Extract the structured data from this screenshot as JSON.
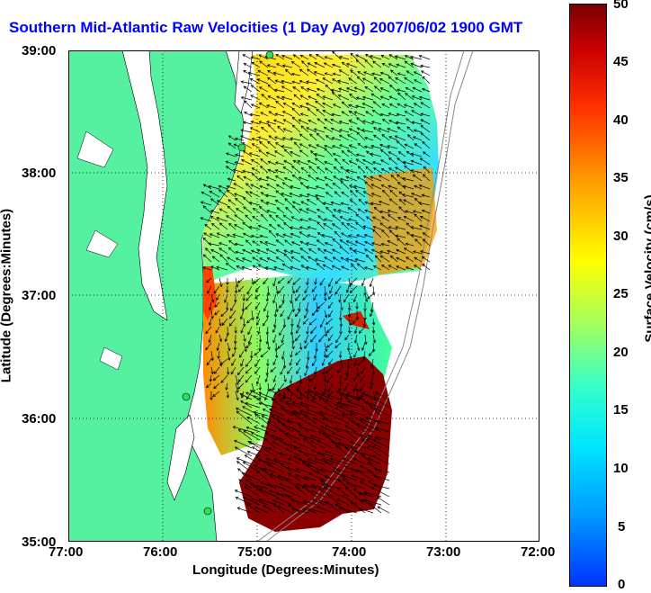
{
  "title": "Southern Mid-Atlantic Raw Velocities (1 Day Avg) 2007/06/02 1900 GMT",
  "axes": {
    "xlabel": "Longitude (Degrees:Minutes)",
    "ylabel": "Latitude (Degrees:Minutes)",
    "xticks": [
      "77:00",
      "76:00",
      "75:00",
      "74:00",
      "73:00",
      "72:00"
    ],
    "yticks": [
      "39:00",
      "38:00",
      "37:00",
      "36:00",
      "35:00"
    ]
  },
  "colorbar": {
    "label": "Surface Velocity (cm/s)",
    "ticks": [
      "50",
      "45",
      "40",
      "35",
      "30",
      "25",
      "20",
      "15",
      "10",
      "5",
      "0"
    ]
  },
  "colors": {
    "land": "#55f0a0",
    "title": "#0000ff"
  }
}
